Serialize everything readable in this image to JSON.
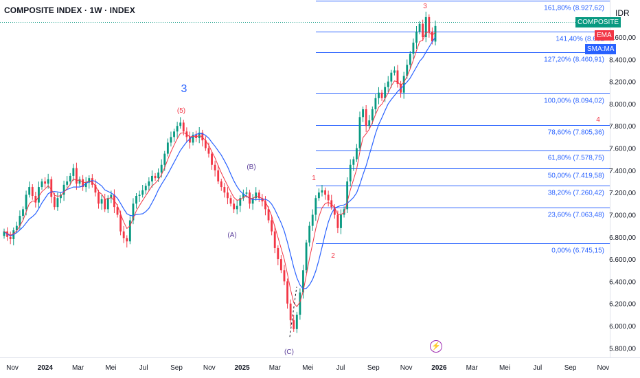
{
  "header": {
    "title": "COMPOSITE INDEX · 1W · INDEX",
    "currency": "IDR"
  },
  "price_scale_labels": {
    "composite": "COMPOSITE",
    "ema": "EMA",
    "sma": "SMA:MA"
  },
  "colors": {
    "up": "#089981",
    "down": "#f23645",
    "ema": "#f23645",
    "sma": "#2962ff",
    "fib": "#2962ff",
    "wave_blue": "#2962ff",
    "wave_red": "#f23645",
    "wave_purple": "#5b3e9a",
    "composite_bg": "#089981",
    "ema_bg": "#f23645",
    "sma_bg": "#2962ff"
  },
  "event_icon": "lightning-icon",
  "chart_data": {
    "type": "candlestick",
    "y_axis": {
      "min": 5800,
      "max": 9000,
      "ticks": [
        5800,
        6000,
        6200,
        6400,
        6600,
        6800,
        7000,
        7200,
        7400,
        7600,
        7800,
        8000,
        8200,
        8400,
        8600
      ],
      "tick_labels": [
        "5.800,00",
        "6.000,00",
        "6.200,00",
        "6.400,00",
        "6.600,00",
        "6.800,00",
        "7.000,00",
        "7.200,00",
        "7.400,00",
        "7.600,00",
        "7.800,00",
        "8.000,00",
        "8.200,00",
        "8.400,00",
        "8.600,00"
      ],
      "position": "right"
    },
    "x_axis": {
      "labels": [
        "Nov",
        "2024",
        "Mar",
        "Mei",
        "Jul",
        "Sep",
        "Nov",
        "2025",
        "Mar",
        "Mei",
        "Jul",
        "Sep",
        "Nov",
        "2026",
        "Mar",
        "Mei",
        "Jul",
        "Sep",
        "Nov"
      ],
      "bold_labels": [
        "2024",
        "2025",
        "2026"
      ]
    },
    "closes": [
      6850,
      6800,
      6780,
      6860,
      6900,
      6990,
      7050,
      7180,
      7250,
      7170,
      7110,
      7250,
      7300,
      7280,
      7320,
      7160,
      7070,
      7150,
      7180,
      7270,
      7300,
      7350,
      7420,
      7280,
      7320,
      7250,
      7290,
      7330,
      7270,
      7200,
      7100,
      7140,
      7050,
      7150,
      7180,
      7070,
      7000,
      6850,
      6790,
      6760,
      6950,
      7100,
      7170,
      7180,
      7220,
      7260,
      7300,
      7350,
      7330,
      7380,
      7450,
      7550,
      7650,
      7700,
      7750,
      7800,
      7830,
      7750,
      7700,
      7650,
      7720,
      7690,
      7740,
      7670,
      7600,
      7550,
      7450,
      7400,
      7300,
      7250,
      7200,
      7150,
      7100,
      7050,
      7080,
      7150,
      7190,
      7200,
      7100,
      7150,
      7200,
      7150,
      7120,
      7050,
      6950,
      6850,
      6700,
      6600,
      6500,
      6400,
      6200,
      6050,
      5970,
      6100,
      6300,
      6500,
      6750,
      6900,
      7000,
      7150,
      7200,
      7220,
      7180,
      7130,
      7070,
      7000,
      6880,
      7000,
      7050,
      7300,
      7450,
      7500,
      7600,
      7880,
      7950,
      7800,
      7850,
      7950,
      8050,
      8100,
      8050,
      8150,
      8200,
      8280,
      8300,
      8180,
      8100,
      8250,
      8350,
      8450,
      8550,
      8650,
      8720,
      8600,
      8780,
      8650,
      8560,
      8700
    ],
    "fibonacci": {
      "levels": [
        {
          "label": "0,00% (6.745,15)",
          "value": 6745.15
        },
        {
          "label": "23,60% (7.063,48)",
          "value": 7063.48
        },
        {
          "label": "38,20% (7.260,42)",
          "value": 7260.42
        },
        {
          "label": "50,00% (7.419,58)",
          "value": 7419.58
        },
        {
          "label": "61,80% (7.578,75)",
          "value": 7578.75
        },
        {
          "label": "78,60% (7.805,36)",
          "value": 7805.36
        },
        {
          "label": "100,00% (8.094,02)",
          "value": 8094.02
        },
        {
          "label": "127,20% (8.460,91)",
          "value": 8460.91
        },
        {
          "label": "141,40% (8.652",
          "value": 8652.5
        },
        {
          "label": "161,80% (8.927,62)",
          "value": 8927.62
        }
      ],
      "top_line_value": 9020
    },
    "wave_labels": [
      {
        "text": "3",
        "color": "blue",
        "size": "large"
      },
      {
        "text": "(5)",
        "color": "red",
        "size": "small"
      },
      {
        "text": "(B)",
        "color": "purple",
        "size": "small"
      },
      {
        "text": "(A)",
        "color": "purple",
        "size": "small"
      },
      {
        "text": "(C)",
        "color": "purple",
        "size": "small"
      },
      {
        "text": "1",
        "color": "red",
        "size": "small"
      },
      {
        "text": "2",
        "color": "red",
        "size": "small"
      },
      {
        "text": "3",
        "color": "red",
        "size": "small"
      },
      {
        "text": "4",
        "color": "red",
        "size": "small"
      }
    ],
    "indicators": [
      "EMA",
      "SMA:MA"
    ],
    "last_price_line": true,
    "grid": false
  }
}
